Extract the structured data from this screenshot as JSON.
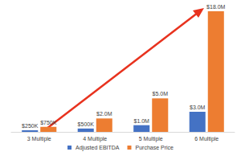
{
  "chart_data": {
    "type": "bar",
    "categories": [
      "3 Multiple",
      "4 Multiple",
      "5 Multiple",
      "6 Multiple"
    ],
    "series": [
      {
        "name": "Adjusted EBITDA",
        "color": "#4472c4",
        "values": [
          250000,
          500000,
          1000000,
          3000000
        ],
        "value_labels": [
          "$250K",
          "$500K",
          "$1.0M",
          "$3.0M"
        ]
      },
      {
        "name": "Purchase Price",
        "color": "#ed7d31",
        "values": [
          750000,
          2000000,
          5000000,
          18000000
        ],
        "value_labels": [
          "$750K",
          "$2.0M",
          "$5.0M",
          "$18.0M"
        ]
      }
    ],
    "ylim": [
      0,
      18000000
    ],
    "yticks": [
      0,
      18000000
    ],
    "grid": false,
    "legend": "bottom",
    "data_labels": true,
    "tick_labels": "x"
  }
}
